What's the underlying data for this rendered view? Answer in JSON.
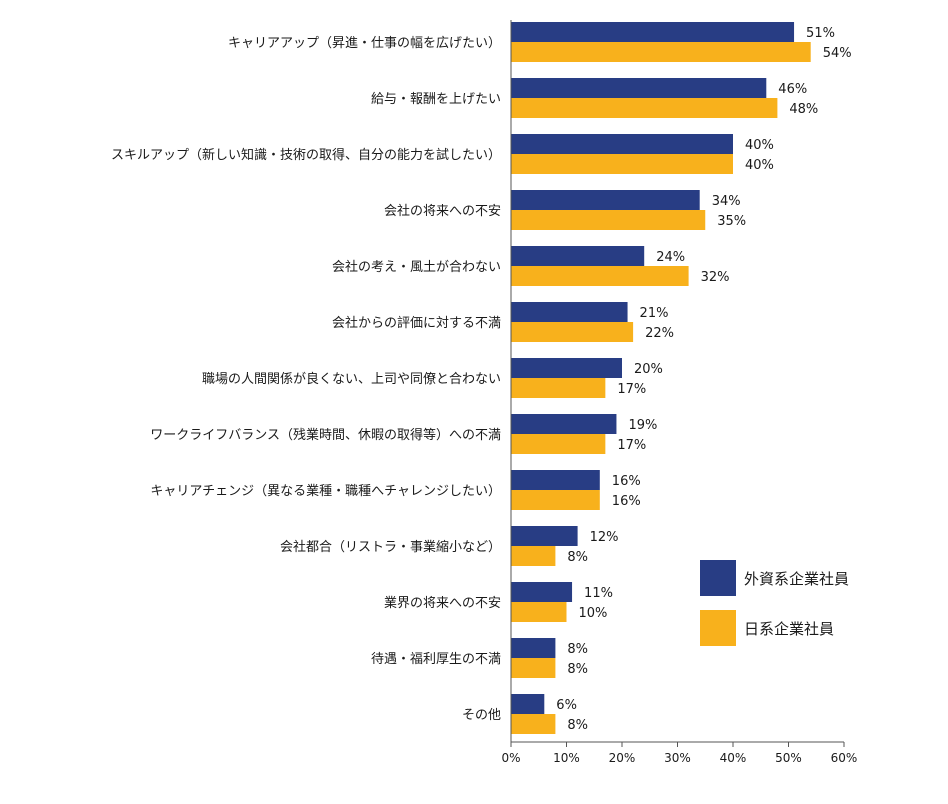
{
  "chart_data": {
    "type": "bar",
    "orientation": "horizontal",
    "categories": [
      "キャリアアップ（昇進・仕事の幅を広げたい）",
      "給与・報酬を上げたい",
      "スキルアップ（新しい知識・技術の取得、自分の能力を試したい）",
      "会社の将来への不安",
      "会社の考え・風土が合わない",
      "会社からの評価に対する不満",
      "職場の人間関係が良くない、上司や同僚と合わない",
      "ワークライフバランス（残業時間、休暇の取得等）への不満",
      "キャリアチェンジ（異なる業種・職種へチャレンジしたい）",
      "会社都合（リストラ・事業縮小など）",
      "業界の将来への不安",
      "待遇・福利厚生の不満",
      "その他"
    ],
    "series": [
      {
        "name": "外資系企業社員",
        "color": "#283d84",
        "values": [
          51,
          46,
          40,
          34,
          24,
          21,
          20,
          19,
          16,
          12,
          11,
          8,
          6
        ],
        "labels": [
          "51%",
          "46%",
          "40%",
          "34%",
          "24%",
          "21%",
          "20%",
          "19%",
          "16%",
          "12%",
          "11%",
          "8%",
          "6%"
        ]
      },
      {
        "name": "日系企業社員",
        "color": "#f8b11c",
        "values": [
          54,
          48,
          40,
          35,
          32,
          22,
          17,
          17,
          16,
          8,
          10,
          8,
          8
        ],
        "labels": [
          "54%",
          "48%",
          "40%",
          "35%",
          "32%",
          "22%",
          "17%",
          "17%",
          "16%",
          "8%",
          "10%",
          "8%",
          "8%"
        ]
      }
    ],
    "xlim": [
      0,
      60
    ],
    "xticks": [
      "0%",
      "10%",
      "20%",
      "30%",
      "40%",
      "50%",
      "60%"
    ],
    "xlabel": "",
    "ylabel": "",
    "grid": false,
    "legend_position": "right"
  }
}
